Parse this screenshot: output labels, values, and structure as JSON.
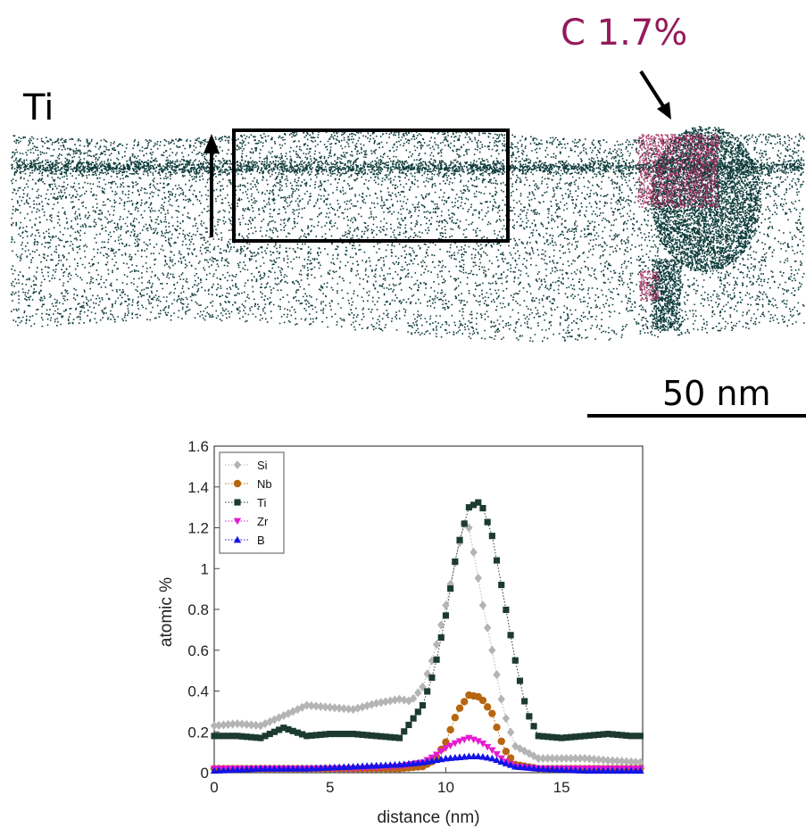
{
  "figure": {
    "element_label": "Ti",
    "carbon_label": "C 1.7%",
    "scale_bar_label": "50 nm"
  },
  "colors": {
    "ti_atoms": "#0f3c3c",
    "carbide": "#a0285a",
    "carbon_label": "#951a5a",
    "Si": "#b4b4b4",
    "Nb": "#b8650f",
    "Ti": "#1c3a32",
    "Zr": "#e61ad2",
    "B": "#1414e6"
  },
  "chart_data": {
    "type": "scatter",
    "title": "",
    "xlabel": "distance (nm)",
    "ylabel": "atomic %",
    "xlim": [
      0,
      18.5
    ],
    "ylim": [
      0,
      1.6
    ],
    "xticks": [
      0,
      5,
      10,
      15
    ],
    "yticks": [
      0,
      0.2,
      0.4,
      0.6,
      0.8,
      1,
      1.2,
      1.4,
      1.6
    ],
    "ytick_labels": [
      "0",
      "0.2",
      "0.4",
      "0.6",
      "0.8",
      "1",
      "1.2",
      "1.4",
      "1.6"
    ],
    "legend": "top-left",
    "grid": false,
    "series": [
      {
        "name": "Si",
        "marker": "diamond",
        "points": [
          [
            0,
            0.23
          ],
          [
            1,
            0.24
          ],
          [
            2,
            0.23
          ],
          [
            3,
            0.28
          ],
          [
            4,
            0.33
          ],
          [
            5,
            0.32
          ],
          [
            6,
            0.31
          ],
          [
            7,
            0.34
          ],
          [
            8,
            0.36
          ],
          [
            8.5,
            0.35
          ],
          [
            9,
            0.42
          ],
          [
            9.5,
            0.58
          ],
          [
            10,
            0.82
          ],
          [
            10.5,
            1.08
          ],
          [
            10.8,
            1.22
          ],
          [
            11,
            1.2
          ],
          [
            11.3,
            1.02
          ],
          [
            11.6,
            0.82
          ],
          [
            12,
            0.6
          ],
          [
            12.5,
            0.3
          ],
          [
            13,
            0.13
          ],
          [
            14,
            0.07
          ],
          [
            15,
            0.07
          ],
          [
            16,
            0.07
          ],
          [
            17,
            0.06
          ],
          [
            18.5,
            0.05
          ]
        ]
      },
      {
        "name": "Nb",
        "marker": "circle",
        "points": [
          [
            0,
            0.02
          ],
          [
            2,
            0.02
          ],
          [
            4,
            0.02
          ],
          [
            6,
            0.02
          ],
          [
            8,
            0.02
          ],
          [
            9,
            0.03
          ],
          [
            9.5,
            0.06
          ],
          [
            10,
            0.15
          ],
          [
            10.5,
            0.3
          ],
          [
            11,
            0.38
          ],
          [
            11.5,
            0.37
          ],
          [
            12,
            0.29
          ],
          [
            12.5,
            0.12
          ],
          [
            13,
            0.04
          ],
          [
            14,
            0.02
          ],
          [
            16,
            0.02
          ],
          [
            18.5,
            0.02
          ]
        ]
      },
      {
        "name": "Ti",
        "marker": "square",
        "points": [
          [
            0,
            0.18
          ],
          [
            1,
            0.18
          ],
          [
            2,
            0.17
          ],
          [
            3,
            0.22
          ],
          [
            4,
            0.18
          ],
          [
            5,
            0.19
          ],
          [
            6,
            0.19
          ],
          [
            7,
            0.18
          ],
          [
            8,
            0.17
          ],
          [
            8.5,
            0.25
          ],
          [
            9,
            0.33
          ],
          [
            9.5,
            0.5
          ],
          [
            10,
            0.77
          ],
          [
            10.5,
            1.1
          ],
          [
            11,
            1.3
          ],
          [
            11.5,
            1.33
          ],
          [
            12,
            1.16
          ],
          [
            12.5,
            0.86
          ],
          [
            13,
            0.55
          ],
          [
            13.5,
            0.3
          ],
          [
            14,
            0.18
          ],
          [
            15,
            0.17
          ],
          [
            16,
            0.18
          ],
          [
            17,
            0.19
          ],
          [
            18,
            0.18
          ],
          [
            18.5,
            0.18
          ]
        ]
      },
      {
        "name": "Zr",
        "marker": "triangle-down",
        "points": [
          [
            0,
            0.02
          ],
          [
            2,
            0.02
          ],
          [
            4,
            0.02
          ],
          [
            6,
            0.02
          ],
          [
            8,
            0.03
          ],
          [
            9,
            0.05
          ],
          [
            9.5,
            0.08
          ],
          [
            10,
            0.12
          ],
          [
            10.5,
            0.15
          ],
          [
            11,
            0.17
          ],
          [
            11.5,
            0.15
          ],
          [
            12,
            0.11
          ],
          [
            12.5,
            0.06
          ],
          [
            13,
            0.03
          ],
          [
            14,
            0.02
          ],
          [
            16,
            0.02
          ],
          [
            18.5,
            0.02
          ]
        ]
      },
      {
        "name": "B",
        "marker": "triangle-up",
        "points": [
          [
            0,
            0.01
          ],
          [
            2,
            0.02
          ],
          [
            4,
            0.02
          ],
          [
            6,
            0.03
          ],
          [
            8,
            0.04
          ],
          [
            9,
            0.05
          ],
          [
            10,
            0.07
          ],
          [
            11,
            0.08
          ],
          [
            11.5,
            0.08
          ],
          [
            12,
            0.07
          ],
          [
            12.5,
            0.05
          ],
          [
            13,
            0.03
          ],
          [
            14,
            0.02
          ],
          [
            16,
            0.01
          ],
          [
            18.5,
            0.01
          ]
        ]
      }
    ]
  }
}
